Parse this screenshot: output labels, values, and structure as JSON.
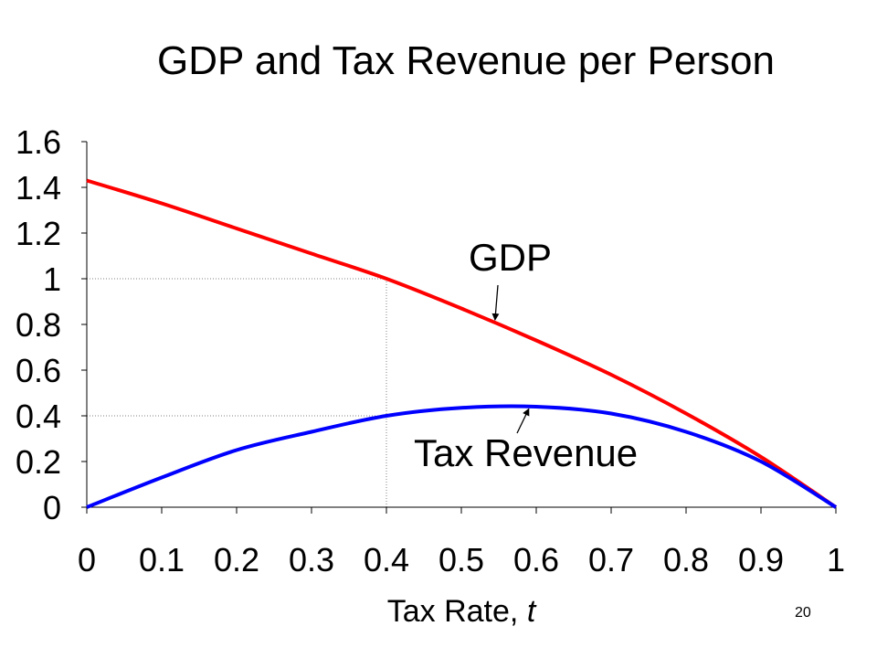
{
  "slide_number": "20",
  "chart_data": {
    "type": "line",
    "title": "GDP and Tax Revenue per Person",
    "xlabel": "Tax Rate, ",
    "xlabel_var": "t",
    "xlim": [
      0,
      1
    ],
    "ylim": [
      0,
      1.6
    ],
    "x_ticks": [
      0,
      0.1,
      0.2,
      0.3,
      0.4,
      0.5,
      0.6,
      0.7,
      0.8,
      0.9,
      1
    ],
    "x_tick_labels": [
      "0",
      "0.1",
      "0.2",
      "0.3",
      "0.4",
      "0.5",
      "0.6",
      "0.7",
      "0.8",
      "0.9",
      "1"
    ],
    "y_ticks": [
      0,
      0.2,
      0.4,
      0.6,
      0.8,
      1,
      1.2,
      1.4,
      1.6
    ],
    "y_tick_labels": [
      "0",
      "0.2",
      "0.4",
      "0.6",
      "0.8",
      "1",
      "1.2",
      "1.4",
      "1.6"
    ],
    "grid": false,
    "series": [
      {
        "name": "GDP",
        "color": "#ff0000",
        "x": [
          0,
          0.1,
          0.2,
          0.3,
          0.4,
          0.5,
          0.6,
          0.7,
          0.8,
          0.9,
          1
        ],
        "values": [
          1.43,
          1.33,
          1.22,
          1.11,
          1.0,
          0.87,
          0.73,
          0.58,
          0.41,
          0.22,
          0.0
        ]
      },
      {
        "name": "Tax Revenue",
        "color": "#0000ff",
        "x": [
          0,
          0.1,
          0.2,
          0.3,
          0.4,
          0.5,
          0.6,
          0.7,
          0.8,
          0.9,
          1
        ],
        "values": [
          0.0,
          0.13,
          0.25,
          0.33,
          0.4,
          0.435,
          0.44,
          0.41,
          0.33,
          0.2,
          0.0
        ]
      }
    ],
    "reference_lines": [
      {
        "x": 0.4,
        "y": 1.0
      },
      {
        "x": 0.4,
        "y": 0.4
      }
    ],
    "annotations": [
      {
        "text": "GDP",
        "series": "GDP",
        "arrow_to": [
          0.545,
          0.82
        ]
      },
      {
        "text": "Tax Revenue",
        "series": "Tax Revenue",
        "arrow_to": [
          0.59,
          0.43
        ]
      }
    ]
  }
}
